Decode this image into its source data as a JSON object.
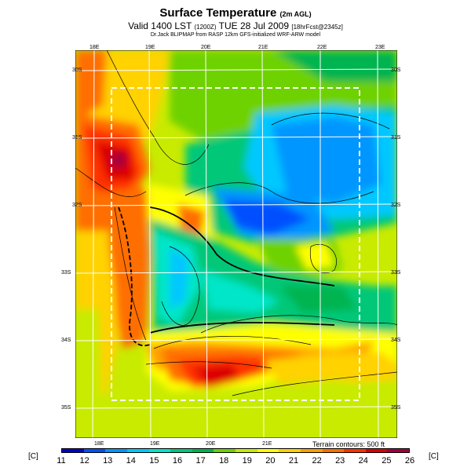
{
  "title": {
    "main": "Surface Temperature",
    "main_sub": "(2m AGL)",
    "line2": "Valid 1400 LST",
    "line2_sub1": "(1200Z)",
    "line2_mid": "TUE 28 Jul 2009",
    "line2_sub2": "[18hrFcst@2345z]",
    "line3": "Dr.Jack BLIPMAP from RASP 12km GFS-initialized WRF-ARW model"
  },
  "map": {
    "lon_top": [
      "18E",
      "19E",
      "20E",
      "21E",
      "22E",
      "23E"
    ],
    "lon_bottom": [
      "18E",
      "19E",
      "20E",
      "21E"
    ],
    "lat_right": [
      "30S",
      "31S",
      "32S",
      "33S",
      "34S",
      "35S"
    ],
    "lat_left": [
      "30S",
      "31S",
      "32S",
      "33S",
      "34S",
      "35S"
    ],
    "terrain_note": "Terrain contours: 500 ft"
  },
  "colorbar": {
    "unit": "[C]",
    "ticks": [
      "11",
      "12",
      "13",
      "14",
      "15",
      "16",
      "17",
      "18",
      "19",
      "20",
      "21",
      "22",
      "23",
      "24",
      "25",
      "26"
    ],
    "colors": [
      "#0000c8",
      "#0050ff",
      "#0096ff",
      "#00c8ff",
      "#00e6c8",
      "#00c878",
      "#00b450",
      "#6ed200",
      "#c8eb00",
      "#ffff00",
      "#ffd200",
      "#ffa000",
      "#ff6e00",
      "#ff3200",
      "#dc0000",
      "#a0003c"
    ]
  }
}
